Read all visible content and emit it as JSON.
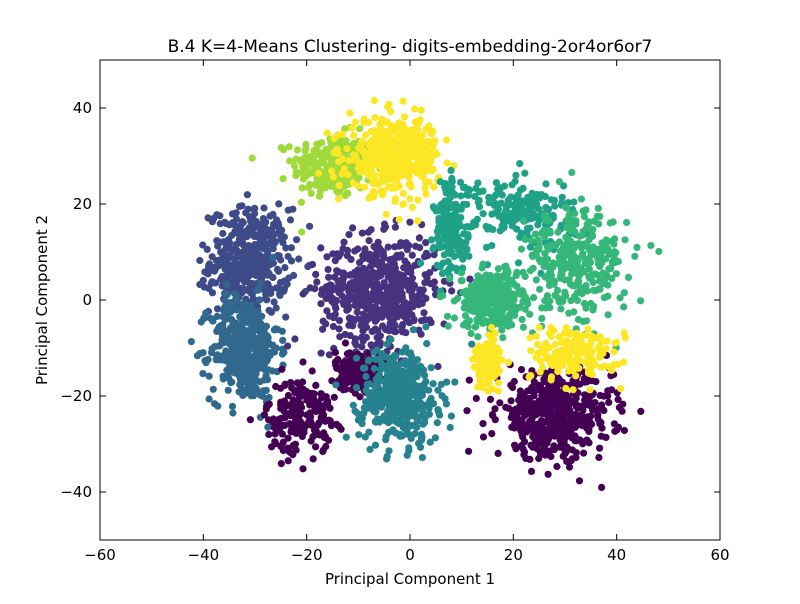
{
  "chart_data": {
    "type": "scatter",
    "title": "B.4 K=4-Means Clustering- digits-embedding-2or4or6or7",
    "xlabel": "Principal Component 1",
    "ylabel": "Principal Component 2",
    "xlim": [
      -60,
      60
    ],
    "ylim": [
      -50,
      50
    ],
    "xticks": [
      -60,
      -40,
      -20,
      0,
      20,
      40,
      60
    ],
    "yticks": [
      -40,
      -20,
      0,
      20,
      40
    ],
    "xtick_labels": [
      "−60",
      "−40",
      "−20",
      "0",
      "20",
      "40",
      "60"
    ],
    "ytick_labels": [
      "−40",
      "−20",
      "0",
      "20",
      "40"
    ],
    "grid": false,
    "legend": "none",
    "clusters": [
      {
        "color": "#9fda3a",
        "center": [
          -17,
          27
        ],
        "spread": [
          5,
          5
        ],
        "n": 260,
        "blobs": [
          [
            -15,
            28,
            7,
            6
          ]
        ]
      },
      {
        "color": "#3e4b89",
        "center": [
          -31,
          7
        ],
        "spread": [
          6,
          9
        ],
        "n": 420,
        "blobs": [
          [
            -31,
            8,
            7,
            10
          ]
        ]
      },
      {
        "color": "#31688e",
        "center": [
          -31,
          -10
        ],
        "spread": [
          5,
          9
        ],
        "n": 420,
        "blobs": [
          [
            -32,
            -10,
            6,
            10
          ]
        ]
      },
      {
        "color": "#46327e",
        "center": [
          -7,
          1
        ],
        "spread": [
          9,
          8
        ],
        "n": 560,
        "blobs": [
          [
            -6,
            2,
            10,
            10
          ]
        ]
      },
      {
        "color": "#440154",
        "center": [
          -20,
          -24
        ],
        "spread": [
          6,
          7
        ],
        "n": 380,
        "blobs": [
          [
            -21,
            -24,
            6,
            7
          ],
          [
            -10,
            -15,
            4,
            4
          ]
        ]
      },
      {
        "color": "#26828e",
        "center": [
          -1,
          -22
        ],
        "spread": [
          6,
          8
        ],
        "n": 420,
        "blobs": [
          [
            -2,
            -20,
            7,
            9
          ]
        ]
      },
      {
        "color": "#440154",
        "center": [
          28,
          -24
        ],
        "spread": [
          9,
          7
        ],
        "n": 520,
        "blobs": [
          [
            28,
            -24,
            10,
            8
          ]
        ]
      },
      {
        "color": "#fde725",
        "center": [
          -3,
          30
        ],
        "spread": [
          7,
          7
        ],
        "n": 420,
        "blobs": [
          [
            -3,
            30,
            8,
            7
          ]
        ]
      },
      {
        "color": "#1fa187",
        "center": [
          22,
          20
        ],
        "spread": [
          8,
          6
        ],
        "n": 380,
        "blobs": [
          [
            22,
            18,
            9,
            7
          ],
          [
            8,
            15,
            3,
            9
          ]
        ]
      },
      {
        "color": "#35b779",
        "center": [
          32,
          8
        ],
        "spread": [
          8,
          10
        ],
        "n": 600,
        "blobs": [
          [
            32,
            8,
            9,
            11
          ],
          [
            16,
            0,
            6,
            5
          ]
        ]
      },
      {
        "color": "#fde725",
        "center": [
          32,
          -11
        ],
        "spread": [
          7,
          4
        ],
        "n": 320,
        "blobs": [
          [
            32,
            -11,
            8,
            5
          ],
          [
            15,
            -13,
            2,
            4
          ]
        ]
      }
    ]
  }
}
